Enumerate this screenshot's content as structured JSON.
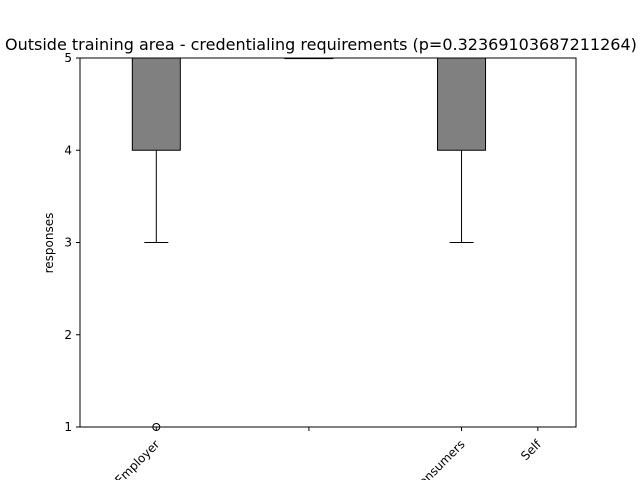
{
  "chart_data": {
    "type": "box",
    "title": "Outside training area - credentialing requirements (p=0.32369103687211264)",
    "xlabel": "",
    "ylabel": "responses",
    "ylim": [
      1,
      5
    ],
    "yticks": [
      "1",
      "2",
      "3",
      "4",
      "5"
    ],
    "categories": [
      "Employer",
      "",
      "Consumers",
      "Self"
    ],
    "category_positions": [
      1,
      2,
      3,
      3.5
    ],
    "xlim": [
      0.5,
      3.75
    ],
    "boxes": [
      {
        "pos": 1,
        "q1": 4,
        "median": 5,
        "q3": 5,
        "whislo": 3,
        "whishi": 5,
        "fliers": [
          1
        ]
      },
      {
        "pos": 2,
        "q1": 5,
        "median": 5,
        "q3": 5,
        "whislo": 5,
        "whishi": 5,
        "fliers": []
      },
      {
        "pos": 3,
        "q1": 4,
        "median": 5,
        "q3": 5,
        "whislo": 3,
        "whishi": 5,
        "fliers": []
      }
    ],
    "colors": {
      "box_fill": "#808080",
      "line": "#000000"
    }
  }
}
